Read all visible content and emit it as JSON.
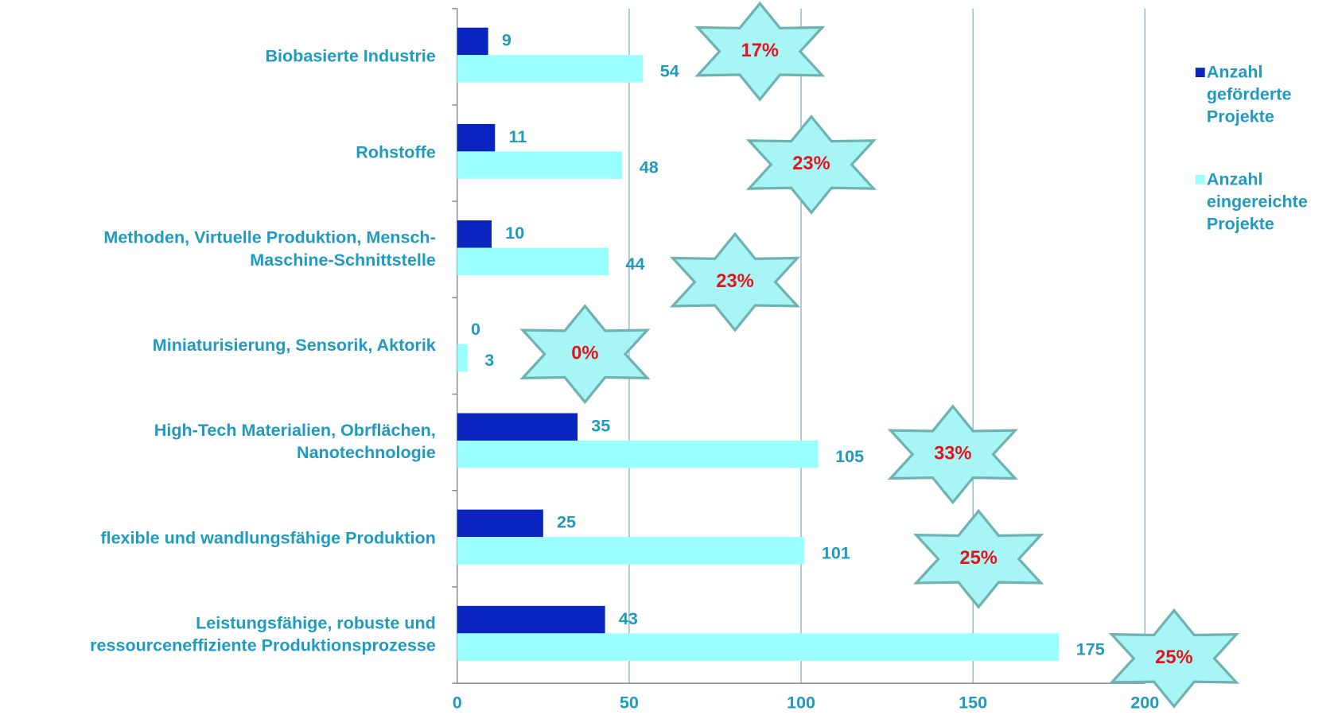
{
  "chart_data": {
    "type": "bar",
    "orientation": "horizontal",
    "categories": [
      "Biobasierte Industrie",
      "Rohstoffe",
      "Methoden, Virtuelle Produktion, Mensch-\nMaschine-Schnittstelle",
      "Miniaturisierung, Sensorik, Aktorik",
      "High-Tech Materialien, Obrflächen,\nNanotechnologie",
      "flexible und wandlungsfähige Produktion",
      "Leistungsfähige, robuste und\nressourceneffiziente Produktionsprozesse"
    ],
    "series": [
      {
        "name": "Anzahl geförderte Projekte",
        "color": "#0a24c0",
        "values": [
          9,
          11,
          10,
          0,
          35,
          25,
          43
        ]
      },
      {
        "name": "Anzahl eingereichte Projekte",
        "color": "#99ffff",
        "values": [
          54,
          48,
          44,
          3,
          105,
          101,
          175
        ]
      }
    ],
    "annotations": [
      "17%",
      "23%",
      "23%",
      "0%",
      "33%",
      "25%",
      "25%"
    ],
    "xlim": [
      0,
      200
    ],
    "xticks": [
      0,
      50,
      100,
      150,
      200
    ],
    "grid": true,
    "legend": "right"
  }
}
